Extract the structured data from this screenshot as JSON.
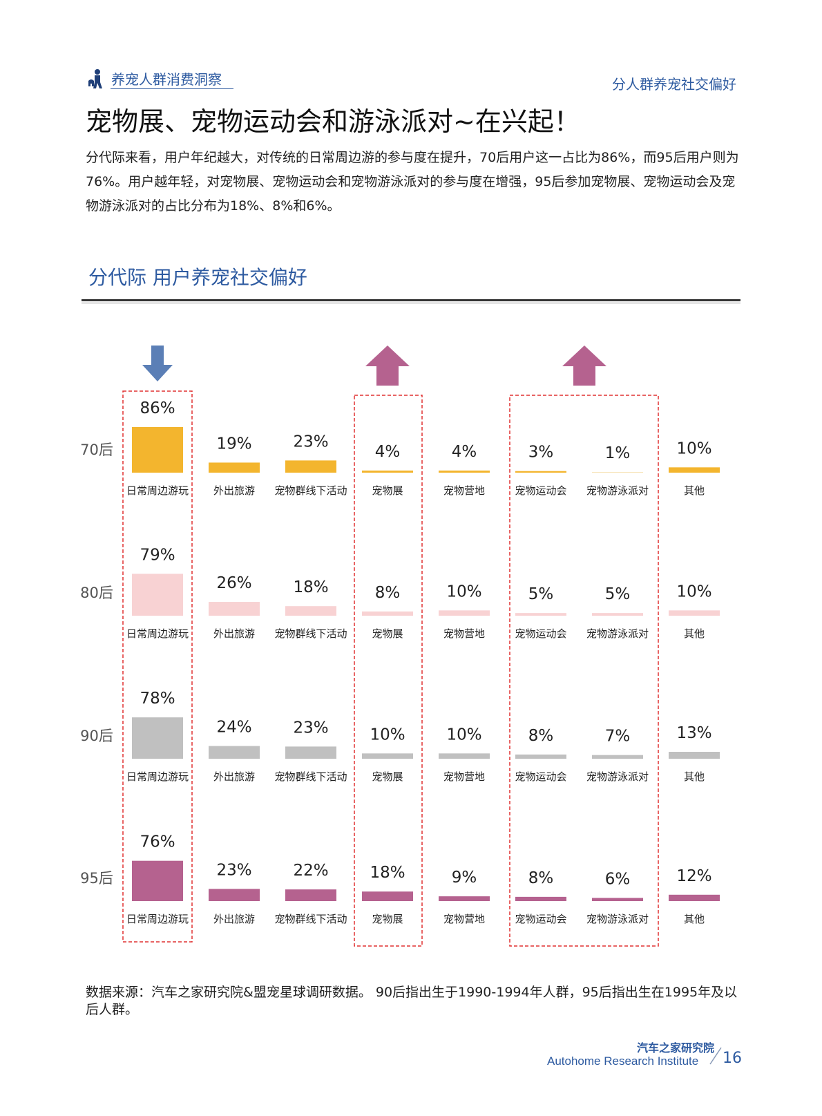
{
  "header": {
    "section_label": "养宠人群消费洞察",
    "section_icon": "person-pet-icon",
    "right_label": "分人群养宠社交偏好"
  },
  "page_title": "宠物展、宠物运动会和游泳派对~在兴起！",
  "intro": "分代际来看，用户年纪越大，对传统的日常周边游的参与度在提升，70后用户这一占比为86%，而95后用户则为76%。用户越年轻，对宠物展、宠物运动会和宠物游泳派对的参与度在增强，95后参加宠物展、宠物运动会及宠物游泳派对的占比分布为18%、8%和6%。",
  "chart_title": "分代际  用户养宠社交偏好",
  "colors": {
    "accent": "#2d5aa0",
    "down_arrow": "#5b7fb6",
    "up_arrow": "#b5628f",
    "highlight_box": "#e03030"
  },
  "chart_data": {
    "type": "bar",
    "categories": [
      "日常周边游玩",
      "外出旅游",
      "宠物群线下活动",
      "宠物展",
      "宠物营地",
      "宠物运动会",
      "宠物游泳派对",
      "其他"
    ],
    "series": [
      {
        "name": "70后",
        "color": "#f3b52e",
        "values": [
          86,
          19,
          23,
          4,
          4,
          3,
          1,
          10
        ],
        "labels": [
          "86%",
          "19%",
          "23%",
          "4%",
          "4%",
          "3%",
          "1%",
          "10%"
        ]
      },
      {
        "name": "80后",
        "color": "#f8d2d3",
        "values": [
          79,
          26,
          18,
          8,
          10,
          5,
          5,
          10
        ],
        "labels": [
          "79%",
          "26%",
          "18%",
          "8%",
          "10%",
          "5%",
          "5%",
          "10%"
        ]
      },
      {
        "name": "90后",
        "color": "#c0c0c0",
        "values": [
          78,
          24,
          23,
          10,
          10,
          8,
          7,
          13
        ],
        "labels": [
          "78%",
          "24%",
          "23%",
          "10%",
          "10%",
          "8%",
          "7%",
          "13%"
        ]
      },
      {
        "name": "95后",
        "color": "#b5628f",
        "values": [
          76,
          23,
          22,
          18,
          9,
          8,
          6,
          12
        ],
        "labels": [
          "76%",
          "23%",
          "22%",
          "18%",
          "9%",
          "8%",
          "6%",
          "12%"
        ]
      }
    ],
    "annotations": [
      {
        "type": "down-arrow",
        "category": "日常周边游玩"
      },
      {
        "type": "up-arrow",
        "category": "宠物展"
      },
      {
        "type": "up-arrow",
        "category": "宠物运动会"
      }
    ],
    "ylim": [
      0,
      86
    ]
  },
  "source_note": "数据来源：汽车之家研究院&盟宠星球调研数据。 90后指出生于1990-1994年人群，95后指出生在1995年及以后人群。",
  "footer": {
    "org_cn": "汽车之家研究院",
    "org_en": "Autohome Research Institute",
    "page_number": "16"
  }
}
